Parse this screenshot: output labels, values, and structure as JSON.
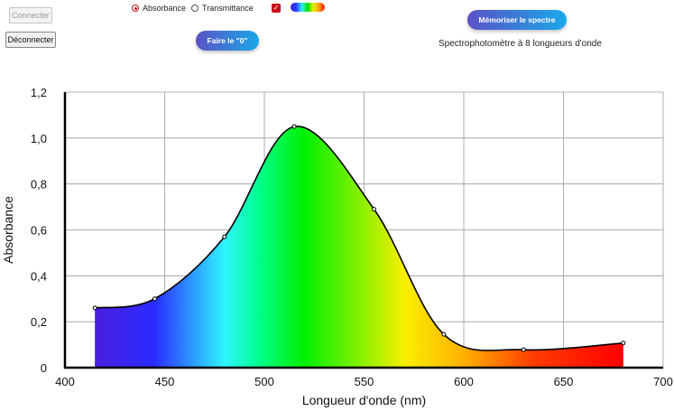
{
  "controls": {
    "connect_label": "Connecter",
    "disconnect_label": "Déconnecter",
    "radio_absorbance": "Absorbance",
    "radio_transmittance": "Transmittance",
    "zero_label": "Faire le \"0\"",
    "save_label": "Mémoriser le spectre",
    "subtitle": "Spectrophotomètre à 8 longueurs d'onde",
    "spectrum_checked": true,
    "mode_selected": "Absorbance"
  },
  "chart_data": {
    "type": "area",
    "title": "",
    "xlabel": "Longueur d'onde (nm)",
    "ylabel": "Absorbance",
    "xlim": [
      400,
      700
    ],
    "ylim": [
      0,
      1.2
    ],
    "xticks": [
      400,
      450,
      500,
      550,
      600,
      650,
      700
    ],
    "yticks": [
      0,
      0.2,
      0.4,
      0.6,
      0.8,
      1.0,
      1.2
    ],
    "ytick_labels": [
      "0",
      "0,2",
      "0,4",
      "0,6",
      "0,8",
      "1,0",
      "1,2"
    ],
    "grid": true,
    "series": [
      {
        "name": "Absorbance",
        "x": [
          415,
          445,
          480,
          515,
          555,
          590,
          630,
          680
        ],
        "y": [
          0.26,
          0.3,
          0.57,
          1.05,
          0.69,
          0.145,
          0.078,
          0.107
        ]
      }
    ],
    "fill_gradient": [
      {
        "nm": 415,
        "color": "#4a1ee0"
      },
      {
        "nm": 445,
        "color": "#2a2cff"
      },
      {
        "nm": 480,
        "color": "#2ef5ff"
      },
      {
        "nm": 497,
        "color": "#00ff90"
      },
      {
        "nm": 520,
        "color": "#00f000"
      },
      {
        "nm": 555,
        "color": "#a8f000"
      },
      {
        "nm": 570,
        "color": "#f8f000"
      },
      {
        "nm": 600,
        "color": "#ffb000"
      },
      {
        "nm": 635,
        "color": "#ff3c00"
      },
      {
        "nm": 680,
        "color": "#ff0000"
      }
    ]
  }
}
